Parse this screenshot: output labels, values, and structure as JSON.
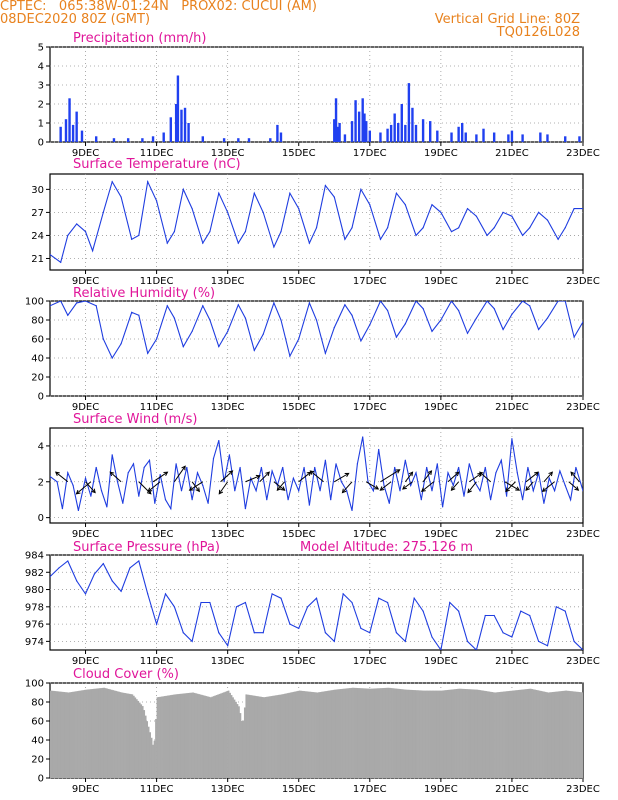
{
  "header": {
    "line1_left": "CPTEC:   065:38W-01:24N   PROX02: CUCUI (AM)",
    "line2_left": "08DEC2020 80Z (GMT)",
    "line2_right": "Vertical Grid Line: 80Z",
    "line3_right": "TQ0126L028"
  },
  "x_ticks": [
    "9DEC",
    "11DEC",
    "13DEC",
    "15DEC",
    "17DEC",
    "19DEC",
    "21DEC",
    "23DEC"
  ],
  "colors": {
    "title": "#e0169a",
    "header": "#e8821e",
    "line": "#1f3de0",
    "bar": "#2040f0",
    "cloud": "#a9a9a9",
    "grid": "#999999"
  },
  "chart_data": [
    {
      "type": "bar",
      "title": "Precipitation (mm/h)",
      "ylim": [
        0,
        5
      ],
      "yticks": [
        "0",
        "1",
        "2",
        "3",
        "4",
        "5"
      ],
      "x_range_days": [
        8.0,
        23.0
      ],
      "x_ticks_days": [
        9,
        11,
        13,
        15,
        17,
        19,
        21,
        23
      ],
      "x": [
        8.3,
        8.45,
        8.55,
        8.65,
        8.75,
        8.9,
        9.3,
        9.8,
        10.2,
        10.6,
        10.9,
        11.2,
        11.4,
        11.55,
        11.6,
        11.7,
        11.8,
        11.9,
        12.3,
        12.9,
        13.3,
        13.6,
        14.2,
        14.4,
        14.5,
        16.0,
        16.05,
        16.1,
        16.15,
        16.3,
        16.5,
        16.6,
        16.7,
        16.8,
        16.85,
        16.9,
        17.0,
        17.3,
        17.5,
        17.6,
        17.7,
        17.8,
        17.9,
        18.0,
        18.1,
        18.2,
        18.3,
        18.5,
        18.7,
        18.9,
        19.3,
        19.5,
        19.6,
        19.7,
        20.0,
        20.2,
        20.5,
        20.9,
        21.0,
        21.3,
        21.8,
        22.0,
        22.5,
        22.9
      ],
      "values": [
        0.8,
        1.2,
        2.3,
        0.9,
        1.6,
        0.6,
        0.3,
        0.2,
        0.2,
        0.2,
        0.3,
        0.5,
        1.3,
        2.0,
        3.5,
        1.7,
        1.8,
        1.0,
        0.3,
        0.2,
        0.2,
        0.2,
        0.2,
        0.9,
        0.5,
        1.2,
        2.3,
        0.8,
        1.0,
        0.4,
        1.1,
        2.2,
        1.6,
        2.3,
        1.5,
        1.1,
        0.6,
        0.5,
        0.7,
        0.9,
        1.5,
        1.0,
        2.0,
        0.9,
        3.1,
        1.8,
        0.9,
        1.2,
        1.1,
        0.6,
        0.5,
        0.8,
        1.0,
        0.5,
        0.4,
        0.7,
        0.5,
        0.4,
        0.6,
        0.4,
        0.5,
        0.4,
        0.3,
        0.3
      ]
    },
    {
      "type": "line",
      "title": "Surface Temperature (nC)",
      "ylim": [
        19.5,
        32
      ],
      "yticks": [
        "21",
        "24",
        "27",
        "30"
      ],
      "ytick_values": [
        21,
        24,
        27,
        30
      ],
      "x_range_days": [
        8.0,
        23.0
      ],
      "x_ticks_days": [
        9,
        11,
        13,
        15,
        17,
        19,
        21,
        23
      ],
      "x": [
        8.0,
        8.3,
        8.5,
        8.75,
        9.0,
        9.2,
        9.5,
        9.75,
        10.0,
        10.3,
        10.5,
        10.75,
        11.0,
        11.3,
        11.5,
        11.75,
        12.0,
        12.3,
        12.5,
        12.75,
        13.0,
        13.3,
        13.5,
        13.75,
        14.0,
        14.3,
        14.5,
        14.75,
        15.0,
        15.3,
        15.5,
        15.75,
        16.0,
        16.3,
        16.5,
        16.75,
        17.0,
        17.3,
        17.5,
        17.75,
        18.0,
        18.3,
        18.5,
        18.75,
        19.0,
        19.3,
        19.5,
        19.75,
        20.0,
        20.3,
        20.5,
        20.75,
        21.0,
        21.3,
        21.5,
        21.75,
        22.0,
        22.3,
        22.5,
        22.75,
        23.0
      ],
      "values": [
        21.5,
        20.5,
        24.0,
        25.5,
        24.5,
        22.0,
        27.0,
        31.0,
        29.0,
        23.5,
        24.0,
        31.0,
        28.5,
        23.0,
        24.5,
        30.0,
        27.5,
        23.0,
        24.5,
        29.5,
        27.0,
        23.0,
        24.5,
        29.5,
        27.0,
        22.5,
        24.5,
        29.5,
        27.5,
        23.0,
        25.0,
        30.5,
        29.0,
        23.5,
        25.0,
        30.0,
        28.0,
        23.5,
        25.0,
        29.5,
        28.0,
        24.0,
        25.0,
        28.0,
        27.0,
        24.5,
        25.0,
        27.5,
        26.5,
        24.0,
        25.0,
        27.0,
        26.5,
        24.0,
        25.0,
        27.0,
        26.0,
        23.5,
        25.0,
        27.5,
        27.5
      ]
    },
    {
      "type": "line",
      "title": "Relative Humidity (%)",
      "ylim": [
        0,
        100
      ],
      "yticks": [
        "0",
        "20",
        "40",
        "60",
        "80",
        "100"
      ],
      "ytick_values": [
        0,
        20,
        40,
        60,
        80,
        100
      ],
      "x_range_days": [
        8.0,
        23.0
      ],
      "x_ticks_days": [
        9,
        11,
        13,
        15,
        17,
        19,
        21,
        23
      ],
      "x": [
        8.0,
        8.3,
        8.5,
        8.75,
        9.0,
        9.3,
        9.5,
        9.75,
        10.0,
        10.3,
        10.5,
        10.75,
        11.0,
        11.3,
        11.5,
        11.75,
        12.0,
        12.3,
        12.5,
        12.75,
        13.0,
        13.3,
        13.5,
        13.75,
        14.0,
        14.3,
        14.5,
        14.75,
        15.0,
        15.3,
        15.5,
        15.75,
        16.0,
        16.3,
        16.5,
        16.75,
        17.0,
        17.3,
        17.5,
        17.75,
        18.0,
        18.3,
        18.5,
        18.75,
        19.0,
        19.3,
        19.5,
        19.75,
        20.0,
        20.3,
        20.5,
        20.75,
        21.0,
        21.3,
        21.5,
        21.75,
        22.0,
        22.3,
        22.5,
        22.75,
        23.0
      ],
      "values": [
        95,
        100,
        85,
        98,
        100,
        95,
        60,
        40,
        55,
        88,
        85,
        45,
        60,
        95,
        82,
        52,
        68,
        95,
        80,
        52,
        68,
        96,
        82,
        48,
        65,
        98,
        80,
        42,
        60,
        98,
        80,
        45,
        72,
        96,
        85,
        58,
        75,
        100,
        90,
        62,
        76,
        100,
        92,
        68,
        80,
        100,
        90,
        66,
        82,
        100,
        92,
        70,
        86,
        100,
        95,
        70,
        82,
        100,
        100,
        62,
        78
      ]
    },
    {
      "type": "line",
      "title": "Surface Wind (m/s)",
      "ylim": [
        -0.3,
        5.0
      ],
      "yticks": [
        "0",
        "2",
        "4"
      ],
      "ytick_values": [
        0,
        2,
        4
      ],
      "x_range_days": [
        8.0,
        23.0
      ],
      "x_ticks_days": [
        9,
        11,
        13,
        15,
        17,
        19,
        21,
        23
      ],
      "x": [
        8.0,
        8.2,
        8.35,
        8.5,
        8.65,
        8.8,
        9.0,
        9.15,
        9.3,
        9.45,
        9.6,
        9.75,
        9.9,
        10.05,
        10.2,
        10.35,
        10.5,
        10.65,
        10.8,
        10.95,
        11.1,
        11.25,
        11.4,
        11.55,
        11.7,
        11.85,
        12.0,
        12.15,
        12.3,
        12.45,
        12.6,
        12.75,
        12.9,
        13.05,
        13.2,
        13.35,
        13.5,
        13.65,
        13.8,
        13.95,
        14.1,
        14.25,
        14.4,
        14.55,
        14.7,
        14.85,
        15.0,
        15.15,
        15.3,
        15.45,
        15.6,
        15.75,
        15.9,
        16.05,
        16.2,
        16.35,
        16.5,
        16.65,
        16.8,
        16.95,
        17.1,
        17.25,
        17.4,
        17.55,
        17.7,
        17.85,
        18.0,
        18.15,
        18.3,
        18.45,
        18.6,
        18.75,
        18.9,
        19.05,
        19.2,
        19.35,
        19.5,
        19.65,
        19.8,
        19.95,
        20.1,
        20.25,
        20.4,
        20.55,
        20.7,
        20.85,
        21.0,
        21.15,
        21.3,
        21.45,
        21.6,
        21.75,
        21.9,
        22.05,
        22.2,
        22.35,
        22.5,
        22.65,
        22.8,
        23.0
      ],
      "values": [
        2.3,
        2.0,
        0.5,
        2.5,
        1.8,
        0.4,
        2.2,
        1.2,
        2.8,
        1.5,
        0.6,
        3.5,
        2.0,
        0.8,
        2.5,
        3.0,
        1.2,
        2.8,
        3.2,
        0.8,
        2.4,
        1.0,
        0.5,
        3.0,
        1.5,
        2.8,
        1.0,
        2.5,
        1.8,
        0.8,
        3.3,
        4.3,
        2.0,
        3.5,
        1.5,
        2.8,
        0.5,
        2.2,
        1.5,
        2.8,
        1.0,
        2.6,
        1.8,
        2.8,
        1.0,
        2.2,
        1.5,
        2.8,
        0.7,
        2.8,
        1.5,
        3.2,
        1.0,
        3.0,
        2.0,
        1.5,
        0.4,
        3.0,
        4.5,
        2.0,
        1.5,
        3.8,
        1.8,
        0.8,
        2.8,
        1.5,
        3.2,
        1.8,
        2.5,
        1.0,
        2.8,
        1.5,
        3.0,
        0.6,
        2.5,
        1.8,
        2.8,
        1.2,
        3.0,
        2.0,
        1.5,
        2.8,
        1.0,
        2.5,
        3.2,
        1.2,
        4.4,
        2.5,
        1.0,
        2.8,
        1.5,
        2.5,
        0.8,
        2.2,
        1.5,
        2.6,
        1.8,
        1.0,
        2.8,
        1.5
      ],
      "arrows": {
        "x": [
          8.5,
          9.0,
          9.15,
          10.0,
          10.5,
          10.9,
          11.1,
          11.5,
          12.0,
          12.3,
          12.8,
          13.0,
          13.5,
          13.9,
          14.3,
          14.6,
          15.0,
          15.7,
          16.0,
          16.5,
          16.9,
          17.3,
          17.6,
          18.0,
          18.2,
          18.5,
          18.8,
          19.2,
          19.5,
          19.8,
          20.0,
          20.4,
          20.8,
          21.1,
          21.4,
          21.6,
          21.9,
          22.2,
          22.6,
          22.9
        ],
        "u": [
          -1.0,
          0.8,
          -1.2,
          -0.9,
          1.0,
          1.2,
          -1.0,
          0.9,
          0.6,
          -1.1,
          1.0,
          -0.7,
          1.2,
          0.8,
          0.9,
          -0.6,
          1.0,
          -1.1,
          1.2,
          -0.8,
          1.0,
          1.6,
          -0.9,
          0.6,
          -0.8,
          0.7,
          -1.0,
          0.9,
          -0.6,
          1.0,
          -0.7,
          -0.9,
          1.2,
          -0.8,
          1.0,
          -0.6,
          0.7,
          -1.0,
          0.8,
          -0.7
        ],
        "v": [
          0.8,
          -0.9,
          -1.0,
          0.8,
          -1.0,
          0.8,
          -0.8,
          1.3,
          -0.8,
          -0.7,
          0.9,
          -1.0,
          0.5,
          0.8,
          -0.7,
          -0.7,
          0.8,
          0.9,
          0.7,
          -0.9,
          -0.6,
          1.0,
          -0.7,
          0.8,
          -0.6,
          0.9,
          -0.8,
          0.8,
          -0.7,
          0.7,
          -0.9,
          0.8,
          -0.7,
          -0.8,
          0.8,
          -0.7,
          0.8,
          -0.8,
          -0.7,
          0.8
        ]
      }
    },
    {
      "type": "line",
      "title": "Surface Pressure (hPa)",
      "annotation": "Model Altitude: 275.126 m",
      "ylim": [
        973,
        984
      ],
      "yticks": [
        "974",
        "976",
        "978",
        "980",
        "982",
        "984"
      ],
      "ytick_values": [
        974,
        976,
        978,
        980,
        982,
        984
      ],
      "x_range_days": [
        8.0,
        23.0
      ],
      "x_ticks_days": [
        9,
        11,
        13,
        15,
        17,
        19,
        21,
        23
      ],
      "x": [
        8.0,
        8.25,
        8.5,
        8.75,
        9.0,
        9.25,
        9.5,
        9.75,
        10.0,
        10.25,
        10.5,
        10.75,
        11.0,
        11.25,
        11.5,
        11.75,
        12.0,
        12.25,
        12.5,
        12.75,
        13.0,
        13.25,
        13.5,
        13.75,
        14.0,
        14.25,
        14.5,
        14.75,
        15.0,
        15.25,
        15.5,
        15.75,
        16.0,
        16.25,
        16.5,
        16.75,
        17.0,
        17.25,
        17.5,
        17.75,
        18.0,
        18.25,
        18.5,
        18.75,
        19.0,
        19.25,
        19.5,
        19.75,
        20.0,
        20.25,
        20.5,
        20.75,
        21.0,
        21.25,
        21.5,
        21.75,
        22.0,
        22.25,
        22.5,
        22.75,
        23.0
      ],
      "values": [
        981.5,
        982.5,
        983.3,
        981.0,
        979.5,
        981.8,
        983.0,
        981.0,
        979.8,
        982.5,
        983.3,
        979.5,
        976.0,
        979.5,
        978.0,
        975.0,
        974.0,
        978.5,
        978.5,
        975.0,
        973.5,
        978.0,
        978.5,
        975.0,
        975.0,
        979.5,
        979.0,
        976.0,
        975.5,
        978.0,
        979.0,
        975.0,
        974.0,
        979.5,
        978.5,
        975.5,
        975.0,
        979.0,
        978.5,
        975.0,
        974.0,
        979.0,
        977.5,
        974.5,
        973.0,
        978.5,
        977.5,
        974.0,
        973.0,
        977.0,
        977.0,
        975.0,
        974.5,
        977.5,
        977.0,
        974.0,
        973.5,
        978.0,
        977.5,
        974.0,
        973.0
      ]
    },
    {
      "type": "bar",
      "title": "Cloud Cover (%)",
      "ylim": [
        0,
        100
      ],
      "yticks": [
        "0",
        "20",
        "40",
        "60",
        "80",
        "100"
      ],
      "ytick_values": [
        0,
        20,
        40,
        60,
        80,
        100
      ],
      "x_range_days": [
        8.0,
        23.0
      ],
      "x_ticks_days": [
        9,
        11,
        13,
        15,
        17,
        19,
        21,
        23
      ],
      "x": [
        8.0,
        8.5,
        9.0,
        9.5,
        10.0,
        10.3,
        10.6,
        10.85,
        10.9,
        11.0,
        11.5,
        12.0,
        12.5,
        13.0,
        13.3,
        13.4,
        13.5,
        14.0,
        14.5,
        15.0,
        15.5,
        16.0,
        16.5,
        17.0,
        17.5,
        18.0,
        18.5,
        19.0,
        19.5,
        20.0,
        20.5,
        21.0,
        21.5,
        22.0,
        22.5,
        23.0
      ],
      "values": [
        92,
        90,
        93,
        95,
        90,
        88,
        75,
        40,
        30,
        85,
        88,
        90,
        85,
        92,
        75,
        55,
        88,
        85,
        88,
        92,
        90,
        93,
        95,
        94,
        95,
        93,
        92,
        92,
        94,
        93,
        90,
        92,
        94,
        90,
        92,
        90
      ]
    }
  ]
}
